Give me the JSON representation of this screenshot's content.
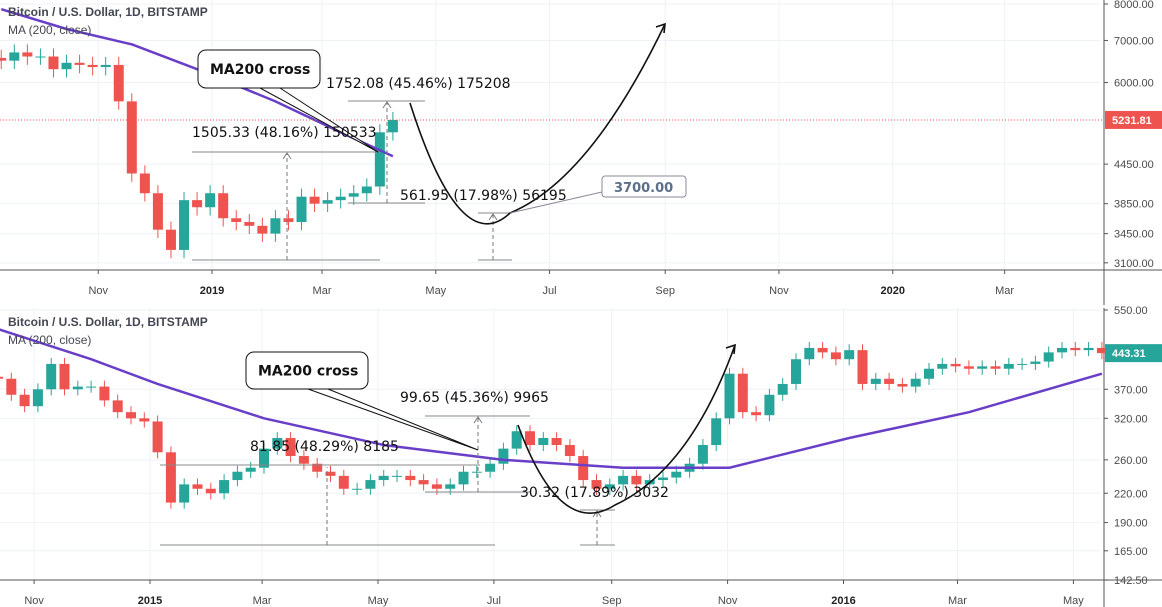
{
  "chart_data": [
    {
      "type": "candlestick",
      "title": "Bitcoin / U.S. Dollar, 1D, BITSTAMP",
      "indicator": "MA (200, close)",
      "y_scale": "log",
      "ylim": [
        3000,
        8200
      ],
      "y_ticks": [
        "8000.00",
        "7000.00",
        "6000.00",
        "4450.00",
        "3850.00",
        "3450.00",
        "3100.00"
      ],
      "x_ticks": [
        {
          "label": "Nov",
          "bold": false,
          "date": "2018-11-01"
        },
        {
          "label": "2019",
          "bold": true,
          "date": "2019-01-01"
        },
        {
          "label": "Mar",
          "bold": false,
          "date": "2019-03-01"
        },
        {
          "label": "May",
          "bold": false,
          "date": "2019-05-01"
        },
        {
          "label": "Jul",
          "bold": false,
          "date": "2019-07-01"
        },
        {
          "label": "Sep",
          "bold": false,
          "date": "2019-09-01"
        },
        {
          "label": "Nov",
          "bold": false,
          "date": "2019-11-01"
        },
        {
          "label": "2020",
          "bold": true,
          "date": "2020-01-01"
        },
        {
          "label": "Mar",
          "bold": false,
          "date": "2020-03-01"
        }
      ],
      "last_price": "5231.81",
      "last_price_color": "#ef5350",
      "price": {
        "dates": [
          "2018-09-10",
          "2018-09-17",
          "2018-09-24",
          "2018-10-01",
          "2018-10-08",
          "2018-10-15",
          "2018-10-22",
          "2018-10-29",
          "2018-11-05",
          "2018-11-12",
          "2018-11-19",
          "2018-11-26",
          "2018-12-03",
          "2018-12-10",
          "2018-12-17",
          "2018-12-24",
          "2018-12-31",
          "2019-01-07",
          "2019-01-14",
          "2019-01-21",
          "2019-01-28",
          "2019-02-04",
          "2019-02-11",
          "2019-02-18",
          "2019-02-25",
          "2019-03-04",
          "2019-03-11",
          "2019-03-18",
          "2019-03-25",
          "2019-04-01",
          "2019-04-08"
        ],
        "close": [
          6500,
          6700,
          6600,
          6600,
          6300,
          6450,
          6400,
          6350,
          6400,
          5600,
          4300,
          4000,
          3500,
          3250,
          3900,
          3800,
          4000,
          3650,
          3600,
          3550,
          3450,
          3650,
          3600,
          3950,
          3850,
          3900,
          3950,
          4000,
          4100,
          5000,
          5231.81
        ]
      },
      "ma200": {
        "dates": [
          "2018-09-10",
          "2018-10-15",
          "2018-11-19",
          "2018-12-24",
          "2019-02-04",
          "2019-03-11",
          "2019-04-08"
        ],
        "values": [
          7850,
          7300,
          6900,
          6300,
          5600,
          5000,
          4580
        ]
      },
      "annotations": {
        "callout": "MA200 cross",
        "range1": "1505.33 (48.16%) 150533",
        "range2": "1752.08 (45.46%) 175208",
        "range3": "561.95 (17.98%) 56195",
        "target_label": "3700.00"
      }
    },
    {
      "type": "candlestick",
      "title": "Bitcoin / U.S. Dollar, 1D, BITSTAMP",
      "indicator": "MA (200, close)",
      "y_scale": "log",
      "ylim": [
        142.5,
        550
      ],
      "y_ticks": [
        "550.00",
        "370.00",
        "320.00",
        "260.00",
        "220.00",
        "190.00",
        "165.00",
        "142.50"
      ],
      "x_ticks": [
        {
          "label": "Nov",
          "bold": false,
          "date": "2014-11-01"
        },
        {
          "label": "2015",
          "bold": true,
          "date": "2015-01-01"
        },
        {
          "label": "Mar",
          "bold": false,
          "date": "2015-03-01"
        },
        {
          "label": "May",
          "bold": false,
          "date": "2015-05-01"
        },
        {
          "label": "Jul",
          "bold": false,
          "date": "2015-07-01"
        },
        {
          "label": "Sep",
          "bold": false,
          "date": "2015-09-01"
        },
        {
          "label": "Nov",
          "bold": false,
          "date": "2015-11-01"
        },
        {
          "label": "2016",
          "bold": true,
          "date": "2016-01-01"
        },
        {
          "label": "Mar",
          "bold": false,
          "date": "2016-03-01"
        },
        {
          "label": "May",
          "bold": false,
          "date": "2016-05-01"
        }
      ],
      "last_price": "443.31",
      "last_price_color": "#26a69a",
      "price": {
        "dates": [
          "2014-10-13",
          "2014-10-20",
          "2014-10-27",
          "2014-11-03",
          "2014-11-10",
          "2014-11-17",
          "2014-11-24",
          "2014-12-01",
          "2014-12-08",
          "2014-12-15",
          "2014-12-22",
          "2014-12-29",
          "2015-01-05",
          "2015-01-12",
          "2015-01-19",
          "2015-01-26",
          "2015-02-02",
          "2015-02-09",
          "2015-02-16",
          "2015-02-23",
          "2015-03-02",
          "2015-03-09",
          "2015-03-16",
          "2015-03-23",
          "2015-03-30",
          "2015-04-06",
          "2015-04-13",
          "2015-04-20",
          "2015-04-27",
          "2015-05-04",
          "2015-05-11",
          "2015-05-18",
          "2015-05-25",
          "2015-06-01",
          "2015-06-08",
          "2015-06-15",
          "2015-06-22",
          "2015-06-29",
          "2015-07-06",
          "2015-07-13",
          "2015-07-20",
          "2015-07-27",
          "2015-08-03",
          "2015-08-10",
          "2015-08-17",
          "2015-08-24",
          "2015-08-31",
          "2015-09-07",
          "2015-09-14",
          "2015-09-21",
          "2015-09-28",
          "2015-10-05",
          "2015-10-12",
          "2015-10-19",
          "2015-10-26",
          "2015-11-02",
          "2015-11-09",
          "2015-11-16",
          "2015-11-23",
          "2015-11-30",
          "2015-12-07",
          "2015-12-14",
          "2015-12-21",
          "2015-12-28",
          "2016-01-04",
          "2016-01-11",
          "2016-01-18",
          "2016-01-25",
          "2016-02-01",
          "2016-02-08",
          "2016-02-15",
          "2016-02-22",
          "2016-02-29",
          "2016-03-07",
          "2016-03-14",
          "2016-03-21",
          "2016-03-28",
          "2016-04-04",
          "2016-04-11",
          "2016-04-18",
          "2016-04-25",
          "2016-05-02",
          "2016-05-09",
          "2016-05-16"
        ],
        "close": [
          390,
          360,
          340,
          370,
          420,
          370,
          375,
          375,
          350,
          330,
          320,
          315,
          270,
          210,
          230,
          225,
          220,
          235,
          245,
          250,
          275,
          290,
          265,
          255,
          245,
          240,
          225,
          225,
          235,
          240,
          240,
          235,
          230,
          225,
          230,
          245,
          245,
          255,
          275,
          300,
          280,
          290,
          280,
          265,
          235,
          225,
          230,
          240,
          230,
          235,
          238,
          245,
          255,
          280,
          320,
          400,
          330,
          325,
          360,
          380,
          430,
          455,
          445,
          430,
          450,
          380,
          390,
          380,
          375,
          390,
          410,
          420,
          415,
          410,
          415,
          410,
          420,
          420,
          425,
          445,
          455,
          450,
          455,
          443.31
        ]
      },
      "ma200": {
        "dates": [
          "2014-10-13",
          "2014-12-01",
          "2015-01-05",
          "2015-03-02",
          "2015-05-04",
          "2015-07-06",
          "2015-09-07",
          "2015-11-02",
          "2016-01-04",
          "2016-03-07",
          "2016-05-16"
        ],
        "values": [
          500,
          430,
          380,
          320,
          280,
          260,
          250,
          250,
          290,
          330,
          400
        ]
      },
      "annotations": {
        "callout": "MA200 cross",
        "range1": "81.85 (48.29%) 8185",
        "range2": "99.65 (45.36%) 9965",
        "range3": "30.32 (17.89%) 3032"
      }
    }
  ],
  "colors": {
    "up": "#26a69a",
    "down": "#ef5350",
    "ma": "#6a3fc8",
    "grid": "#eef2f6",
    "axis": "#555"
  }
}
